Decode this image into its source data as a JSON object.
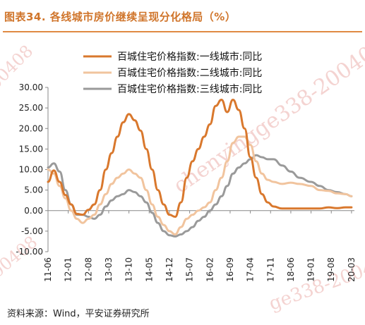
{
  "title": "图表34.  各线城市房价继续呈现分化格局（%）",
  "source": "资料来源：Wind，平安证券研究所",
  "watermark_texts": [
    "chenyingge338-200408",
    "ge338-200408",
    "00408",
    "00408"
  ],
  "chart_data": {
    "type": "line",
    "title": "图表34.  各线城市房价继续呈现分化格局（%）",
    "xlabel": "",
    "ylabel": "",
    "ylim": [
      -10,
      30
    ],
    "yticks": [
      -10,
      -5,
      0,
      5,
      10,
      15,
      20,
      25,
      30
    ],
    "ytick_labels": [
      "-10.00",
      "-5.00",
      "0.00",
      "5.00",
      "10.00",
      "15.00",
      "20.00",
      "25.00",
      "30.00"
    ],
    "xlim": [
      "2011-06",
      "2020-04"
    ],
    "xticks": [
      "11-06",
      "12-01",
      "12-08",
      "13-03",
      "13-10",
      "14-05",
      "14-12",
      "15-07",
      "16-02",
      "16-09",
      "17-04",
      "17-11",
      "18-06",
      "19-01",
      "19-08",
      "20-03"
    ],
    "grid": false,
    "legend_position": "top",
    "series": [
      {
        "name": "百城住宅价格指数:一线城市:同比",
        "color": "#d9782d",
        "points": [
          [
            "2011-06",
            7.0
          ],
          [
            "2011-08",
            9.8
          ],
          [
            "2011-10",
            7.0
          ],
          [
            "2011-12",
            3.8
          ],
          [
            "2012-02",
            1.5
          ],
          [
            "2012-04",
            -0.8
          ],
          [
            "2012-06",
            -1.0
          ],
          [
            "2012-08",
            0.2
          ],
          [
            "2012-10",
            1.5
          ],
          [
            "2012-12",
            5.0
          ],
          [
            "2013-02",
            10.0
          ],
          [
            "2013-04",
            14.0
          ],
          [
            "2013-06",
            18.0
          ],
          [
            "2013-08",
            21.5
          ],
          [
            "2013-10",
            23.5
          ],
          [
            "2013-12",
            22.0
          ],
          [
            "2014-02",
            19.5
          ],
          [
            "2014-04",
            15.0
          ],
          [
            "2014-06",
            10.0
          ],
          [
            "2014-08",
            5.0
          ],
          [
            "2014-10",
            1.5
          ],
          [
            "2014-12",
            -1.0
          ],
          [
            "2015-02",
            -1.5
          ],
          [
            "2015-04",
            2.0
          ],
          [
            "2015-06",
            8.0
          ],
          [
            "2015-08",
            12.0
          ],
          [
            "2015-10",
            15.0
          ],
          [
            "2015-12",
            18.0
          ],
          [
            "2016-02",
            21.0
          ],
          [
            "2016-04",
            25.5
          ],
          [
            "2016-06",
            27.0
          ],
          [
            "2016-08",
            24.0
          ],
          [
            "2016-10",
            27.0
          ],
          [
            "2016-12",
            24.5
          ],
          [
            "2017-02",
            20.0
          ],
          [
            "2017-04",
            13.0
          ],
          [
            "2017-06",
            8.0
          ],
          [
            "2017-08",
            4.0
          ],
          [
            "2017-10",
            2.0
          ],
          [
            "2017-12",
            1.0
          ],
          [
            "2018-03",
            0.5
          ],
          [
            "2018-06",
            0.5
          ],
          [
            "2018-09",
            0.5
          ],
          [
            "2019-01",
            0.5
          ],
          [
            "2019-04",
            0.5
          ],
          [
            "2019-07",
            0.8
          ],
          [
            "2019-10",
            0.6
          ],
          [
            "2020-01",
            0.8
          ],
          [
            "2020-03",
            0.8
          ]
        ]
      },
      {
        "name": "百城住宅价格指数:二线城市:同比",
        "color": "#f1c49e",
        "points": [
          [
            "2011-06",
            10.0
          ],
          [
            "2011-08",
            9.0
          ],
          [
            "2011-10",
            6.0
          ],
          [
            "2011-12",
            3.0
          ],
          [
            "2012-02",
            0.0
          ],
          [
            "2012-04",
            -2.0
          ],
          [
            "2012-06",
            -3.0
          ],
          [
            "2012-08",
            -2.0
          ],
          [
            "2012-10",
            -1.0
          ],
          [
            "2012-12",
            1.5
          ],
          [
            "2013-02",
            4.0
          ],
          [
            "2013-04",
            6.5
          ],
          [
            "2013-06",
            8.0
          ],
          [
            "2013-08",
            9.0
          ],
          [
            "2013-10",
            10.0
          ],
          [
            "2013-12",
            9.0
          ],
          [
            "2014-02",
            8.0
          ],
          [
            "2014-04",
            5.0
          ],
          [
            "2014-06",
            1.5
          ],
          [
            "2014-08",
            -1.5
          ],
          [
            "2014-10",
            -3.5
          ],
          [
            "2014-12",
            -5.0
          ],
          [
            "2015-02",
            -5.8
          ],
          [
            "2015-04",
            -4.0
          ],
          [
            "2015-06",
            -2.0
          ],
          [
            "2015-08",
            -1.0
          ],
          [
            "2015-10",
            0.0
          ],
          [
            "2015-12",
            0.8
          ],
          [
            "2016-02",
            2.0
          ],
          [
            "2016-04",
            5.0
          ],
          [
            "2016-06",
            8.0
          ],
          [
            "2016-08",
            12.0
          ],
          [
            "2016-10",
            16.5
          ],
          [
            "2016-12",
            18.0
          ],
          [
            "2017-02",
            18.0
          ],
          [
            "2017-04",
            16.0
          ],
          [
            "2017-06",
            12.0
          ],
          [
            "2017-08",
            9.0
          ],
          [
            "2017-10",
            7.5
          ],
          [
            "2017-12",
            7.0
          ],
          [
            "2018-03",
            6.5
          ],
          [
            "2018-06",
            6.8
          ],
          [
            "2018-09",
            6.5
          ],
          [
            "2019-01",
            6.0
          ],
          [
            "2019-04",
            5.0
          ],
          [
            "2019-07",
            4.8
          ],
          [
            "2019-10",
            4.2
          ],
          [
            "2020-01",
            4.0
          ],
          [
            "2020-03",
            3.5
          ]
        ]
      },
      {
        "name": "百城住宅价格指数:三线城市:同比",
        "color": "#9a9a9a",
        "points": [
          [
            "2011-06",
            10.5
          ],
          [
            "2011-08",
            11.5
          ],
          [
            "2011-10",
            9.5
          ],
          [
            "2011-12",
            5.0
          ],
          [
            "2012-02",
            1.5
          ],
          [
            "2012-04",
            -1.0
          ],
          [
            "2012-06",
            -1.0
          ],
          [
            "2012-08",
            -1.5
          ],
          [
            "2012-10",
            -2.0
          ],
          [
            "2012-12",
            -1.0
          ],
          [
            "2013-02",
            1.0
          ],
          [
            "2013-04",
            2.5
          ],
          [
            "2013-06",
            3.5
          ],
          [
            "2013-08",
            4.0
          ],
          [
            "2013-10",
            5.0
          ],
          [
            "2013-12",
            4.5
          ],
          [
            "2014-02",
            3.5
          ],
          [
            "2014-04",
            2.0
          ],
          [
            "2014-06",
            -0.5
          ],
          [
            "2014-08",
            -3.0
          ],
          [
            "2014-10",
            -5.0
          ],
          [
            "2014-12",
            -6.0
          ],
          [
            "2015-02",
            -6.3
          ],
          [
            "2015-04",
            -5.8
          ],
          [
            "2015-06",
            -5.0
          ],
          [
            "2015-08",
            -4.0
          ],
          [
            "2015-10",
            -2.5
          ],
          [
            "2015-12",
            -1.5
          ],
          [
            "2016-02",
            0.0
          ],
          [
            "2016-04",
            1.5
          ],
          [
            "2016-06",
            3.5
          ],
          [
            "2016-08",
            6.0
          ],
          [
            "2016-10",
            9.0
          ],
          [
            "2016-12",
            10.5
          ],
          [
            "2017-02",
            11.5
          ],
          [
            "2017-04",
            12.5
          ],
          [
            "2017-06",
            13.5
          ],
          [
            "2017-08",
            13.0
          ],
          [
            "2017-10",
            12.5
          ],
          [
            "2017-12",
            12.5
          ],
          [
            "2018-03",
            11.0
          ],
          [
            "2018-06",
            9.5
          ],
          [
            "2018-09",
            8.0
          ],
          [
            "2019-01",
            7.0
          ],
          [
            "2019-04",
            6.0
          ],
          [
            "2019-07",
            5.0
          ],
          [
            "2019-10",
            4.5
          ],
          [
            "2020-01",
            4.0
          ],
          [
            "2020-03",
            3.5
          ]
        ]
      }
    ]
  }
}
